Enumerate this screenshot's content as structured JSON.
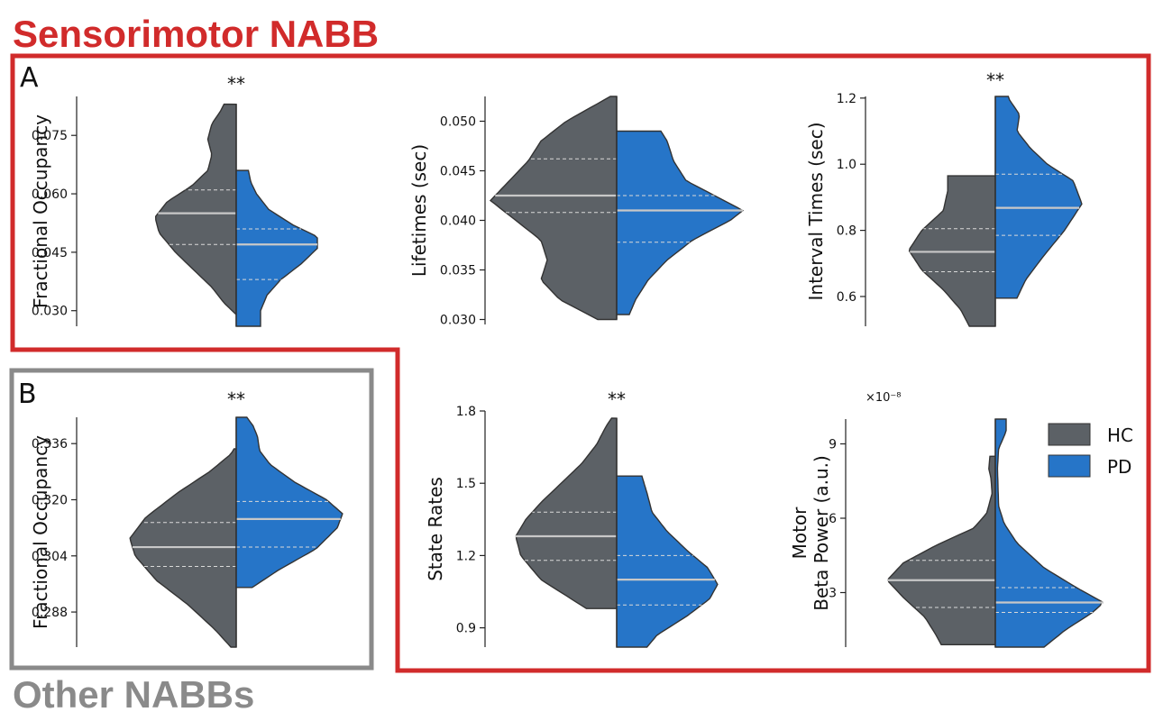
{
  "headers": {
    "sensorimotor": "Sensorimotor NABB",
    "other": "Other NABBs",
    "panel_a": "A",
    "panel_b": "B"
  },
  "colors": {
    "hc": "#5c6166",
    "pd": "#2675c8",
    "sensorimotor_box": "#d12b2b",
    "other_box": "#8a8a8a"
  },
  "legend": {
    "items": [
      {
        "label": "HC",
        "color": "#5c6166"
      },
      {
        "label": "PD",
        "color": "#2675c8"
      }
    ]
  },
  "chart_data": [
    {
      "type": "violin",
      "panel": "A",
      "ylabel": "Fractional Occupancy",
      "ylim": [
        0.026,
        0.085
      ],
      "yticks": [
        "0.030",
        "0.045",
        "0.060",
        "0.075"
      ],
      "significance": "**",
      "series": [
        {
          "name": "HC",
          "min": 0.029,
          "max": 0.083,
          "q1": 0.047,
          "median": 0.055,
          "q3": 0.061,
          "profile": [
            [
              0.029,
              0.0
            ],
            [
              0.032,
              0.15
            ],
            [
              0.036,
              0.3
            ],
            [
              0.04,
              0.5
            ],
            [
              0.045,
              0.75
            ],
            [
              0.05,
              0.95
            ],
            [
              0.054,
              1.0
            ],
            [
              0.058,
              0.85
            ],
            [
              0.062,
              0.55
            ],
            [
              0.066,
              0.35
            ],
            [
              0.07,
              0.3
            ],
            [
              0.074,
              0.35
            ],
            [
              0.078,
              0.3
            ],
            [
              0.081,
              0.2
            ],
            [
              0.083,
              0.15
            ]
          ]
        },
        {
          "name": "PD",
          "min": 0.026,
          "max": 0.066,
          "q1": 0.038,
          "median": 0.047,
          "q3": 0.051,
          "profile": [
            [
              0.026,
              0.3
            ],
            [
              0.03,
              0.3
            ],
            [
              0.034,
              0.38
            ],
            [
              0.038,
              0.55
            ],
            [
              0.042,
              0.8
            ],
            [
              0.046,
              1.0
            ],
            [
              0.049,
              1.0
            ],
            [
              0.052,
              0.7
            ],
            [
              0.056,
              0.4
            ],
            [
              0.06,
              0.25
            ],
            [
              0.063,
              0.18
            ],
            [
              0.066,
              0.15
            ]
          ]
        }
      ]
    },
    {
      "type": "violin",
      "panel": "A",
      "ylabel": "Lifetimes (sec)",
      "ylim": [
        0.0295,
        0.0525
      ],
      "yticks": [
        "0.030",
        "0.035",
        "0.040",
        "0.045",
        "0.050"
      ],
      "significance": "",
      "series": [
        {
          "name": "HC",
          "min": 0.03,
          "max": 0.0525,
          "q1": 0.0408,
          "median": 0.0425,
          "q3": 0.0462,
          "profile": [
            [
              0.03,
              0.15
            ],
            [
              0.032,
              0.45
            ],
            [
              0.034,
              0.6
            ],
            [
              0.036,
              0.55
            ],
            [
              0.038,
              0.6
            ],
            [
              0.04,
              0.8
            ],
            [
              0.042,
              1.0
            ],
            [
              0.044,
              0.85
            ],
            [
              0.046,
              0.7
            ],
            [
              0.048,
              0.6
            ],
            [
              0.05,
              0.4
            ],
            [
              0.052,
              0.12
            ],
            [
              0.0525,
              0.05
            ]
          ]
        },
        {
          "name": "PD",
          "min": 0.0305,
          "max": 0.049,
          "q1": 0.0378,
          "median": 0.041,
          "q3": 0.0425,
          "profile": [
            [
              0.0305,
              0.1
            ],
            [
              0.032,
              0.15
            ],
            [
              0.034,
              0.25
            ],
            [
              0.036,
              0.4
            ],
            [
              0.038,
              0.6
            ],
            [
              0.04,
              0.9
            ],
            [
              0.041,
              1.0
            ],
            [
              0.042,
              0.85
            ],
            [
              0.044,
              0.55
            ],
            [
              0.046,
              0.45
            ],
            [
              0.048,
              0.4
            ],
            [
              0.049,
              0.35
            ]
          ]
        }
      ]
    },
    {
      "type": "violin",
      "panel": "A",
      "ylabel": "Interval Times (sec)",
      "ylim": [
        0.51,
        1.205
      ],
      "yticks": [
        "0.6",
        "0.8",
        "1.0",
        "1.2"
      ],
      "significance": "**",
      "series": [
        {
          "name": "HC",
          "min": 0.51,
          "max": 0.965,
          "q1": 0.675,
          "median": 0.735,
          "q3": 0.805,
          "profile": [
            [
              0.51,
              0.3
            ],
            [
              0.56,
              0.4
            ],
            [
              0.62,
              0.6
            ],
            [
              0.68,
              0.85
            ],
            [
              0.74,
              1.0
            ],
            [
              0.8,
              0.85
            ],
            [
              0.86,
              0.6
            ],
            [
              0.92,
              0.55
            ],
            [
              0.965,
              0.55
            ]
          ]
        },
        {
          "name": "PD",
          "min": 0.595,
          "max": 1.205,
          "q1": 0.785,
          "median": 0.868,
          "q3": 0.97,
          "profile": [
            [
              0.595,
              0.25
            ],
            [
              0.65,
              0.35
            ],
            [
              0.72,
              0.55
            ],
            [
              0.8,
              0.8
            ],
            [
              0.88,
              1.0
            ],
            [
              0.95,
              0.9
            ],
            [
              1.0,
              0.6
            ],
            [
              1.05,
              0.4
            ],
            [
              1.1,
              0.25
            ],
            [
              1.15,
              0.28
            ],
            [
              1.2,
              0.15
            ]
          ]
        }
      ]
    },
    {
      "type": "violin",
      "panel": "B",
      "ylabel": "Fractional Occupancy",
      "ylim": [
        0.278,
        0.3435
      ],
      "yticks": [
        "0.288",
        "0.304",
        "0.320",
        "0.336"
      ],
      "significance": "**",
      "series": [
        {
          "name": "HC",
          "min": 0.278,
          "max": 0.3345,
          "q1": 0.301,
          "median": 0.3065,
          "q3": 0.3135,
          "profile": [
            [
              0.278,
              0.05
            ],
            [
              0.283,
              0.2
            ],
            [
              0.29,
              0.45
            ],
            [
              0.297,
              0.75
            ],
            [
              0.304,
              0.95
            ],
            [
              0.309,
              1.0
            ],
            [
              0.315,
              0.85
            ],
            [
              0.322,
              0.55
            ],
            [
              0.328,
              0.25
            ],
            [
              0.333,
              0.05
            ],
            [
              0.3345,
              0.02
            ]
          ]
        },
        {
          "name": "PD",
          "min": 0.295,
          "max": 0.3435,
          "q1": 0.3065,
          "median": 0.3145,
          "q3": 0.3195,
          "profile": [
            [
              0.295,
              0.15
            ],
            [
              0.3,
              0.4
            ],
            [
              0.306,
              0.75
            ],
            [
              0.312,
              0.95
            ],
            [
              0.316,
              1.0
            ],
            [
              0.32,
              0.85
            ],
            [
              0.325,
              0.55
            ],
            [
              0.33,
              0.32
            ],
            [
              0.334,
              0.22
            ],
            [
              0.338,
              0.2
            ],
            [
              0.341,
              0.16
            ],
            [
              0.3435,
              0.1
            ]
          ]
        }
      ]
    },
    {
      "type": "violin",
      "panel": "A",
      "ylabel": "State Rates",
      "ylim": [
        0.82,
        1.8
      ],
      "yticks": [
        "0.9",
        "1.2",
        "1.5",
        "1.8"
      ],
      "significance": "**",
      "series": [
        {
          "name": "HC",
          "min": 0.98,
          "max": 1.77,
          "q1": 1.18,
          "median": 1.28,
          "q3": 1.38,
          "profile": [
            [
              0.98,
              0.3
            ],
            [
              1.02,
              0.45
            ],
            [
              1.1,
              0.75
            ],
            [
              1.2,
              0.95
            ],
            [
              1.28,
              1.0
            ],
            [
              1.35,
              0.9
            ],
            [
              1.42,
              0.75
            ],
            [
              1.5,
              0.55
            ],
            [
              1.58,
              0.35
            ],
            [
              1.66,
              0.2
            ],
            [
              1.74,
              0.1
            ],
            [
              1.77,
              0.05
            ]
          ]
        },
        {
          "name": "PD",
          "min": 0.82,
          "max": 1.53,
          "q1": 0.995,
          "median": 1.1,
          "q3": 1.2,
          "profile": [
            [
              0.82,
              0.3
            ],
            [
              0.87,
              0.4
            ],
            [
              0.95,
              0.7
            ],
            [
              1.02,
              0.92
            ],
            [
              1.08,
              1.0
            ],
            [
              1.15,
              0.9
            ],
            [
              1.22,
              0.7
            ],
            [
              1.3,
              0.5
            ],
            [
              1.38,
              0.35
            ],
            [
              1.46,
              0.3
            ],
            [
              1.53,
              0.25
            ]
          ]
        }
      ]
    },
    {
      "type": "violin",
      "panel": "A",
      "ylabel": "Motor\nBeta Power (a.u.)",
      "scale_label": "×10⁻⁸",
      "ylim": [
        0.8,
        10.0
      ],
      "yticks": [
        "3",
        "6",
        "9"
      ],
      "significance": "",
      "series": [
        {
          "name": "HC",
          "min": 0.9,
          "max": 8.5,
          "q1": 2.4,
          "median": 3.5,
          "q3": 4.3,
          "profile": [
            [
              0.9,
              0.5
            ],
            [
              1.3,
              0.55
            ],
            [
              2.0,
              0.65
            ],
            [
              2.8,
              0.85
            ],
            [
              3.5,
              1.0
            ],
            [
              4.2,
              0.85
            ],
            [
              4.9,
              0.55
            ],
            [
              5.6,
              0.2
            ],
            [
              6.2,
              0.08
            ],
            [
              7.0,
              0.03
            ],
            [
              7.6,
              0.04
            ],
            [
              8.0,
              0.06
            ],
            [
              8.5,
              0.05
            ]
          ]
        },
        {
          "name": "PD",
          "min": 0.8,
          "max": 10.0,
          "q1": 2.2,
          "median": 2.6,
          "q3": 3.2,
          "profile": [
            [
              0.8,
              0.45
            ],
            [
              1.5,
              0.65
            ],
            [
              2.2,
              0.9
            ],
            [
              2.6,
              1.0
            ],
            [
              3.2,
              0.75
            ],
            [
              4.0,
              0.45
            ],
            [
              5.0,
              0.2
            ],
            [
              5.8,
              0.08
            ],
            [
              6.5,
              0.03
            ],
            [
              8.0,
              0.02
            ],
            [
              8.8,
              0.03
            ],
            [
              9.5,
              0.1
            ],
            [
              10.0,
              0.1
            ]
          ]
        }
      ]
    }
  ]
}
